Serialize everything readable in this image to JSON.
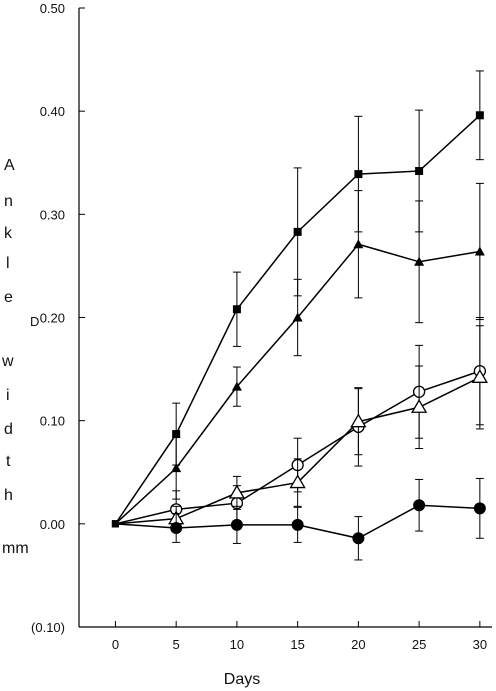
{
  "chart_data": {
    "type": "line",
    "title": "",
    "xlabel": "Days",
    "ylabel_letters": [
      "A",
      "n",
      "k",
      "l",
      "e",
      "D",
      "w",
      "i",
      "d",
      "t",
      "h",
      "mm"
    ],
    "x_ticks": [
      "0",
      "5",
      "10",
      "15",
      "20",
      "25",
      "30"
    ],
    "y_ticks": [
      "0.50",
      "0.40",
      "0.30",
      "0.20",
      "0.10",
      "0.00",
      "(0.10)"
    ],
    "xlim": [
      -3,
      31
    ],
    "ylim": [
      -0.1,
      0.5
    ],
    "grid": false,
    "legend": "none",
    "x": [
      0,
      5,
      10,
      15,
      20,
      25,
      30
    ],
    "series": [
      {
        "marker": "square-filled",
        "values": [
          0.0,
          0.087,
          0.208,
          0.283,
          0.339,
          0.342,
          0.396
        ],
        "errors": [
          0.0,
          0.03,
          0.036,
          0.062,
          0.056,
          0.059,
          0.043
        ]
      },
      {
        "marker": "triangle-filled",
        "values": [
          0.0,
          0.054,
          0.133,
          0.2,
          0.271,
          0.254,
          0.264
        ],
        "errors": [
          0.0,
          0.03,
          0.019,
          0.037,
          0.052,
          0.059,
          0.066
        ]
      },
      {
        "marker": "circle-open",
        "values": [
          0.0,
          0.014,
          0.02,
          0.057,
          0.094,
          0.128,
          0.148
        ],
        "errors": [
          0.0,
          0.018,
          0.017,
          0.026,
          0.038,
          0.045,
          0.052
        ]
      },
      {
        "marker": "triangle-open",
        "values": [
          0.0,
          0.005,
          0.03,
          0.04,
          0.099,
          0.113,
          0.142
        ],
        "errors": [
          0.0,
          0.012,
          0.016,
          0.023,
          0.032,
          0.04,
          0.05
        ]
      },
      {
        "marker": "circle-filled",
        "values": [
          0.0,
          -0.004,
          -0.001,
          -0.001,
          -0.014,
          0.018,
          0.015
        ],
        "errors": [
          0.0,
          0.014,
          0.018,
          0.017,
          0.021,
          0.025,
          0.029
        ]
      }
    ]
  }
}
